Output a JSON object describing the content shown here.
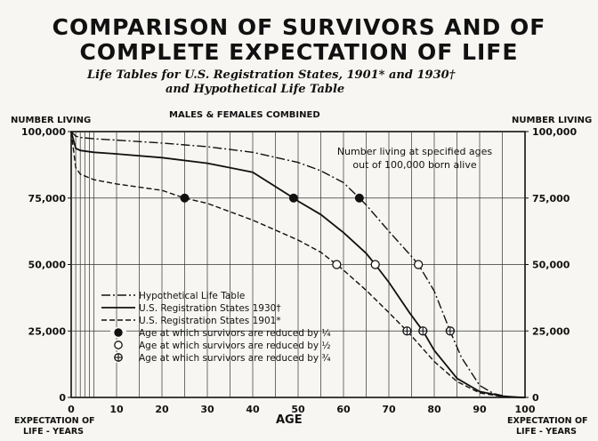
{
  "header": {
    "title_line1": "COMPARISON OF SURVIVORS AND OF",
    "title_line2": "COMPLETE EXPECTATION OF LIFE",
    "subtitle_line1": "Life Tables for U.S. Registration States, 1901* and 1930†",
    "subtitle_line2": "and Hypothetical Life Table"
  },
  "labels": {
    "left_axis_title": "NUMBER LIVING",
    "right_axis_title": "NUMBER LIVING",
    "panel_title": "MALES & FEMALES COMBINED",
    "annotation_line1": "Number living at specified ages",
    "annotation_line2": "out of 100,000 born alive",
    "x_axis_title": "AGE",
    "bottom_left_line1": "EXPECTATION OF",
    "bottom_left_line2": "LIFE - YEARS",
    "bottom_right_line1": "EXPECTATION OF",
    "bottom_right_line2": "LIFE - YEARS"
  },
  "legend": [
    {
      "key": "hypothetical",
      "label": "Hypothetical Life Table",
      "marker": "line-dashdot"
    },
    {
      "key": "us1930",
      "label": "U.S. Registration States 1930†",
      "marker": "line-solid"
    },
    {
      "key": "us1901",
      "label": "U.S. Registration States 1901*",
      "marker": "line-dashed"
    },
    {
      "key": "quarter",
      "label": "Age at which survivors are reduced by ¼",
      "marker": "filled-circle"
    },
    {
      "key": "half",
      "label": "Age at which survivors are reduced by ½",
      "marker": "open-circle"
    },
    {
      "key": "threequarter",
      "label": "Age at which survivors are reduced by ¾",
      "marker": "crossed-circle"
    }
  ],
  "chart_data": {
    "type": "line",
    "xlabel": "AGE",
    "ylabel": "NUMBER LIVING",
    "xlim": [
      0,
      100
    ],
    "ylim": [
      0,
      100000
    ],
    "x_ticks": [
      "0",
      "10",
      "20",
      "30",
      "40",
      "50",
      "60",
      "70",
      "80",
      "90",
      "100"
    ],
    "y_ticks_left": [
      "0",
      "25,000",
      "50,000",
      "75,000",
      "100,000"
    ],
    "y_ticks_right": [
      "0",
      "25,000",
      "50,000",
      "75,000",
      "100,000"
    ],
    "y_tick_values": [
      0,
      25000,
      50000,
      75000,
      100000
    ],
    "grid": true,
    "series": [
      {
        "name": "Hypothetical Life Table",
        "style": "dashdot",
        "points": [
          [
            0,
            100000
          ],
          [
            1,
            98300
          ],
          [
            2,
            97800
          ],
          [
            5,
            97300
          ],
          [
            10,
            96800
          ],
          [
            20,
            95700
          ],
          [
            30,
            94300
          ],
          [
            40,
            92200
          ],
          [
            50,
            88400
          ],
          [
            55,
            85300
          ],
          [
            60,
            80800
          ],
          [
            63.5,
            75000
          ],
          [
            65,
            72400
          ],
          [
            70,
            62500
          ],
          [
            75,
            53000
          ],
          [
            76.5,
            50000
          ],
          [
            80,
            40000
          ],
          [
            83.5,
            25000
          ],
          [
            86,
            15000
          ],
          [
            90,
            4500
          ],
          [
            93,
            1500
          ],
          [
            96,
            300
          ],
          [
            100,
            0
          ]
        ]
      },
      {
        "name": "U.S. Registration States 1930†",
        "style": "solid",
        "points": [
          [
            0,
            100000
          ],
          [
            1,
            93700
          ],
          [
            2,
            92900
          ],
          [
            5,
            92200
          ],
          [
            10,
            91600
          ],
          [
            20,
            90200
          ],
          [
            30,
            88100
          ],
          [
            40,
            84700
          ],
          [
            49,
            75000
          ],
          [
            50,
            73800
          ],
          [
            55,
            68800
          ],
          [
            60,
            62000
          ],
          [
            65,
            54200
          ],
          [
            67,
            50000
          ],
          [
            70,
            43300
          ],
          [
            74.5,
            32000
          ],
          [
            77.5,
            25000
          ],
          [
            80,
            17700
          ],
          [
            85,
            7200
          ],
          [
            90,
            2200
          ],
          [
            95,
            500
          ],
          [
            98,
            100
          ],
          [
            100,
            0
          ]
        ]
      },
      {
        "name": "U.S. Registration States 1901*",
        "style": "dashed",
        "points": [
          [
            0,
            100000
          ],
          [
            1,
            86500
          ],
          [
            2,
            84000
          ],
          [
            5,
            81900
          ],
          [
            10,
            80300
          ],
          [
            20,
            77900
          ],
          [
            25,
            75000
          ],
          [
            30,
            73000
          ],
          [
            40,
            66700
          ],
          [
            50,
            59200
          ],
          [
            55,
            54600
          ],
          [
            58.5,
            50000
          ],
          [
            60,
            47900
          ],
          [
            65,
            40300
          ],
          [
            70,
            31900
          ],
          [
            74,
            25000
          ],
          [
            75,
            23100
          ],
          [
            80,
            13500
          ],
          [
            85,
            6000
          ],
          [
            90,
            1700
          ],
          [
            95,
            300
          ],
          [
            100,
            0
          ]
        ]
      }
    ],
    "markers": {
      "quarter": [
        [
          25,
          75000
        ],
        [
          49,
          75000
        ],
        [
          63.5,
          75000
        ]
      ],
      "half": [
        [
          58.5,
          50000
        ],
        [
          67,
          50000
        ],
        [
          76.5,
          50000
        ]
      ],
      "threequarter": [
        [
          74,
          25000
        ],
        [
          77.5,
          25000
        ],
        [
          83.5,
          25000
        ]
      ]
    }
  }
}
